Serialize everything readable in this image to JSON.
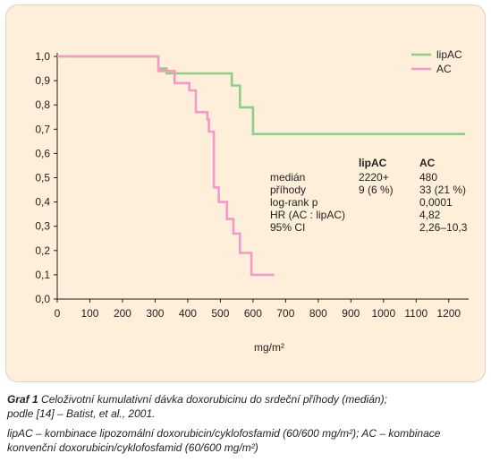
{
  "chart_data": {
    "type": "line",
    "xlabel": "mg/m²",
    "ylabel": "",
    "xlim": [
      0,
      1250
    ],
    "ylim": [
      0,
      1.0
    ],
    "x_ticks": [
      "0",
      "100",
      "200",
      "300",
      "400",
      "500",
      "600",
      "700",
      "800",
      "900",
      "1000",
      "1100",
      "1200"
    ],
    "y_ticks": [
      "0,0",
      "0,1",
      "0,2",
      "0,3",
      "0,4",
      "0,5",
      "0,6",
      "0,7",
      "0,8",
      "0,9",
      "1,0"
    ],
    "legend_position": "top-right",
    "grid": false,
    "series": [
      {
        "name": "lipAC",
        "color": "#8fcd8a",
        "points": [
          [
            0,
            1.0
          ],
          [
            310,
            1.0
          ],
          [
            310,
            0.95
          ],
          [
            335,
            0.95
          ],
          [
            335,
            0.93
          ],
          [
            535,
            0.93
          ],
          [
            535,
            0.88
          ],
          [
            560,
            0.88
          ],
          [
            560,
            0.79
          ],
          [
            600,
            0.79
          ],
          [
            600,
            0.68
          ],
          [
            1250,
            0.68
          ]
        ]
      },
      {
        "name": "AC",
        "color": "#f29ac9",
        "points": [
          [
            0,
            1.0
          ],
          [
            310,
            1.0
          ],
          [
            310,
            0.94
          ],
          [
            360,
            0.94
          ],
          [
            360,
            0.89
          ],
          [
            405,
            0.89
          ],
          [
            405,
            0.86
          ],
          [
            425,
            0.86
          ],
          [
            425,
            0.77
          ],
          [
            460,
            0.77
          ],
          [
            460,
            0.74
          ],
          [
            465,
            0.74
          ],
          [
            465,
            0.69
          ],
          [
            480,
            0.69
          ],
          [
            480,
            0.46
          ],
          [
            495,
            0.46
          ],
          [
            495,
            0.4
          ],
          [
            520,
            0.4
          ],
          [
            520,
            0.33
          ],
          [
            540,
            0.33
          ],
          [
            540,
            0.27
          ],
          [
            560,
            0.27
          ],
          [
            560,
            0.19
          ],
          [
            595,
            0.19
          ],
          [
            595,
            0.1
          ],
          [
            665,
            0.1
          ]
        ]
      }
    ],
    "stats_table": {
      "headers": [
        "",
        "lipAC",
        "AC"
      ],
      "rows": [
        [
          "medián",
          "2220+",
          "480"
        ],
        [
          "příhody",
          "9 (6 %)",
          "33 (21 %)"
        ],
        [
          "log-rank p",
          "",
          "0,0001"
        ],
        [
          "HR (AC : lipAC)",
          "",
          "4,82"
        ],
        [
          "95% CI",
          "",
          "2,26–10,3"
        ]
      ]
    }
  },
  "caption": {
    "label": "Graf 1",
    "title": "Celoživotní kumulativní dávka doxorubicinu do srdeční příhody (medián);",
    "source": "podle [14] – Batist, et al., 2001.",
    "footnote_line1": "lipAC – kombinace lipozomální doxorubicin/cyklofosfamid (60/600 mg/m²); AC – kombinace",
    "footnote_line2": "konvenční doxorubicin/cyklofosfamid (60/600 mg/m²)"
  }
}
